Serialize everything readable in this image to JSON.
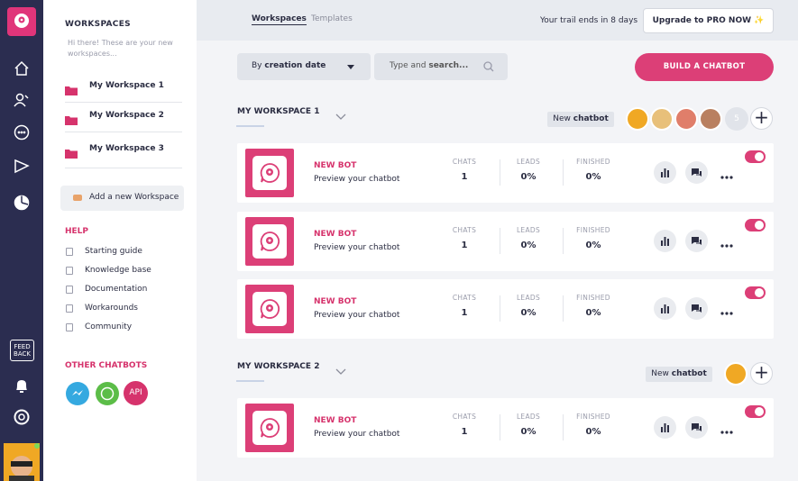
{
  "nav": {
    "feedback": [
      "FEED",
      "BACK"
    ]
  },
  "sidebar": {
    "title": "WORKSPACES",
    "intro": "Hi there! These are your new workspaces...",
    "workspaces": [
      "My Workspace 1",
      "My Workspace 2",
      "My Workspace 3"
    ],
    "add_workspace": "Add a new Workspace",
    "help": {
      "title": "HELP",
      "items": [
        "Starting guide",
        "Knowledge base",
        "Documentation",
        "Workarounds",
        "Community"
      ]
    },
    "other_chatbots": {
      "title": "OTHER CHATBOTS",
      "api": "API"
    }
  },
  "header": {
    "tabs": [
      "Workspaces",
      "Templates"
    ],
    "trial": "Your trail ends in 8 days",
    "upgrade": "Upgrade to PRO NOW ✨"
  },
  "toolbar": {
    "sort": [
      "By",
      "creation date"
    ],
    "search": [
      "Type and",
      "search..."
    ],
    "build": "BUILD A CHATBOT"
  },
  "workspaces": [
    {
      "title": "MY WORKSPACE 1",
      "new_chatbot": [
        "New",
        "chatbot"
      ],
      "extra_members": "5",
      "bots": [
        {
          "name": "NEW BOT",
          "subtitle": "Preview your chatbot",
          "stats": [
            {
              "label": "CHATS",
              "value": 1
            },
            {
              "label": "LEADS",
              "value": "0%"
            },
            {
              "label": "FINISHED",
              "value": "0%"
            }
          ]
        },
        {
          "name": "NEW BOT",
          "subtitle": "Preview your chatbot",
          "stats": [
            {
              "label": "CHATS",
              "value": 1
            },
            {
              "label": "LEADS",
              "value": "0%"
            },
            {
              "label": "FINISHED",
              "value": "0%"
            }
          ]
        },
        {
          "name": "NEW BOT",
          "subtitle": "Preview your chatbot",
          "stats": [
            {
              "label": "CHATS",
              "value": 1
            },
            {
              "label": "LEADS",
              "value": "0%"
            },
            {
              "label": "FINISHED",
              "value": "0%"
            }
          ]
        }
      ]
    },
    {
      "title": "MY WORKSPACE 2",
      "new_chatbot": [
        "New",
        "chatbot"
      ],
      "bots": [
        {
          "name": "NEW BOT",
          "subtitle": "Preview your chatbot",
          "stats": [
            {
              "label": "CHATS",
              "value": 1
            },
            {
              "label": "LEADS",
              "value": "0%"
            },
            {
              "label": "FINISHED",
              "value": "0%"
            }
          ]
        }
      ]
    }
  ]
}
